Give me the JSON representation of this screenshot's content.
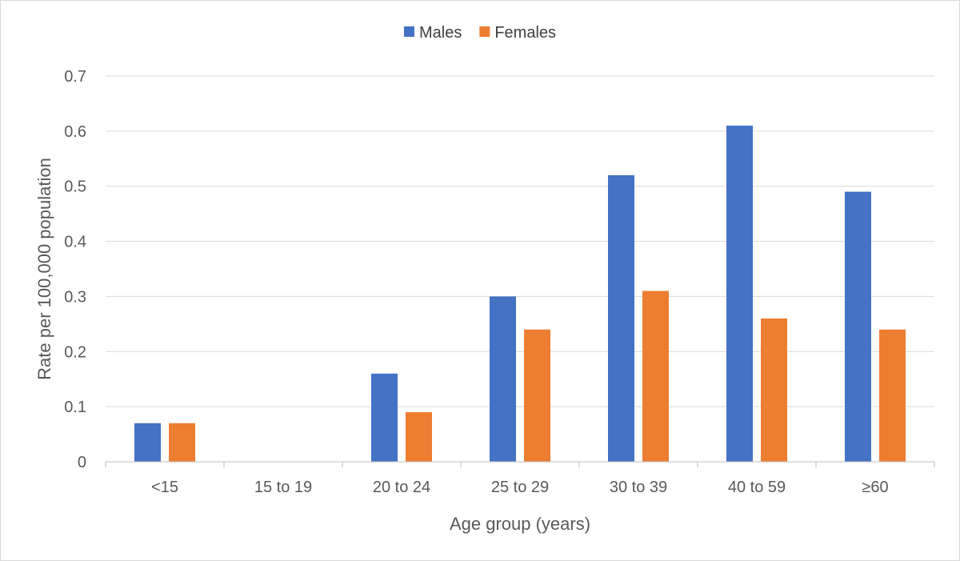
{
  "chart_data": {
    "type": "bar",
    "title": "",
    "xlabel": "Age group (years)",
    "ylabel": "Rate per 100,000 population",
    "categories": [
      "<15",
      "15 to 19",
      "20 to 24",
      "25 to 29",
      "30 to 39",
      "40 to 59",
      "≥60"
    ],
    "series": [
      {
        "name": "Males",
        "color": "#4472c4",
        "values": [
          0.07,
          0,
          0.16,
          0.3,
          0.52,
          0.61,
          0.49
        ]
      },
      {
        "name": "Females",
        "color": "#ed7d31",
        "values": [
          0.07,
          0,
          0.09,
          0.24,
          0.31,
          0.26,
          0.24
        ]
      }
    ],
    "ylim": [
      0,
      0.7
    ],
    "yticks": [
      "0",
      "0.1",
      "0.2",
      "0.3",
      "0.4",
      "0.5",
      "0.6",
      "0.7"
    ],
    "grid": true,
    "legend_position": "top-center"
  }
}
